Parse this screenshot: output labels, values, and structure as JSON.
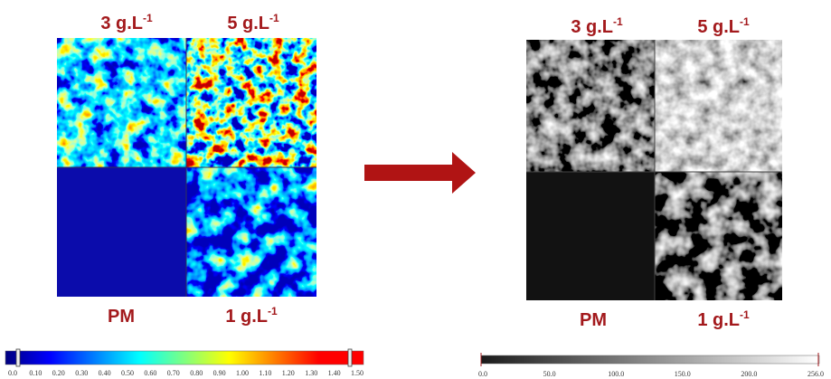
{
  "left_panel": {
    "labels": [
      {
        "text": "3 g.L",
        "sup": "-1"
      },
      {
        "text": "5 g.L",
        "sup": "-1"
      },
      {
        "text": "PM"
      },
      {
        "text": "1 g.L",
        "sup": "-1"
      }
    ],
    "colorbar_ticks": [
      "0.0",
      "0.10",
      "0.20",
      "0.30",
      "0.40",
      "0.50",
      "0.60",
      "0.70",
      "0.80",
      "0.90",
      "1.00",
      "1.10",
      "1.20",
      "1.30",
      "1.40",
      "1.50"
    ]
  },
  "right_panel": {
    "labels": [
      {
        "text": "3 g.L",
        "sup": "-1"
      },
      {
        "text": "5 g.L",
        "sup": "-1"
      },
      {
        "text": "PM"
      },
      {
        "text": "1 g.L",
        "sup": "-1"
      }
    ],
    "colorbar_ticks": [
      "0.0",
      "50.0",
      "100.0",
      "150.0",
      "200.0",
      "256.0"
    ]
  }
}
